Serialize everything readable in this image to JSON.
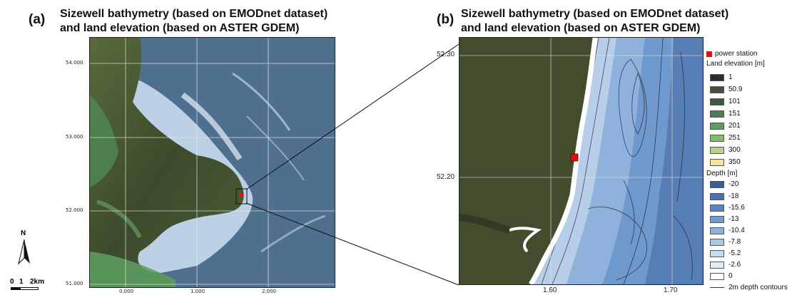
{
  "panel_a": {
    "label": "(a)",
    "title_line1": "Sizewell bathymetry (based on EMODnet dataset)",
    "title_line2": "and land elevation (based on ASTER GDEM)",
    "lat_ticks": [
      "54.000",
      "53.000",
      "52.000",
      "51.000"
    ],
    "lon_ticks": [
      "0.000",
      "1.000",
      "2.000"
    ]
  },
  "panel_b": {
    "label": "(b)",
    "title_line1": "Sizewell bathymetry (based on EMODnet dataset)",
    "title_line2": "and land elevation (based on ASTER GDEM)",
    "lat_ticks": [
      "52.30",
      "52.20"
    ],
    "lon_ticks": [
      "1.60",
      "1.70"
    ]
  },
  "compass": {
    "label": "N"
  },
  "scale_bar": {
    "labels": [
      "0",
      "1",
      "2km"
    ]
  },
  "legend": {
    "power_station_label": "power station",
    "power_station_color": "#e01010",
    "land_heading": "Land elevation [m]",
    "land_items": [
      {
        "label": "1",
        "color": "#2e2e28"
      },
      {
        "label": "50.9",
        "color": "#4b4c3f"
      },
      {
        "label": "101",
        "color": "#3f5a44"
      },
      {
        "label": "151",
        "color": "#4f7a57"
      },
      {
        "label": "201",
        "color": "#5f9a63"
      },
      {
        "label": "251",
        "color": "#7ebc72"
      },
      {
        "label": "300",
        "color": "#bccf8c"
      },
      {
        "label": "350",
        "color": "#f3e6a1"
      }
    ],
    "depth_heading": "Depth [m]",
    "depth_items": [
      {
        "label": "-20",
        "color": "#3d5e96"
      },
      {
        "label": "-18",
        "color": "#4a71ad"
      },
      {
        "label": "-15.6",
        "color": "#5b87c0"
      },
      {
        "label": "-13",
        "color": "#729ccd"
      },
      {
        "label": "-10.4",
        "color": "#8eb2d9"
      },
      {
        "label": "-7.8",
        "color": "#abc8e5"
      },
      {
        "label": "-5.2",
        "color": "#c6dcef"
      },
      {
        "label": "-2.6",
        "color": "#e0ecf7"
      },
      {
        "label": "0",
        "color": "#ffffff"
      }
    ],
    "contour_label": "2m depth contours"
  }
}
